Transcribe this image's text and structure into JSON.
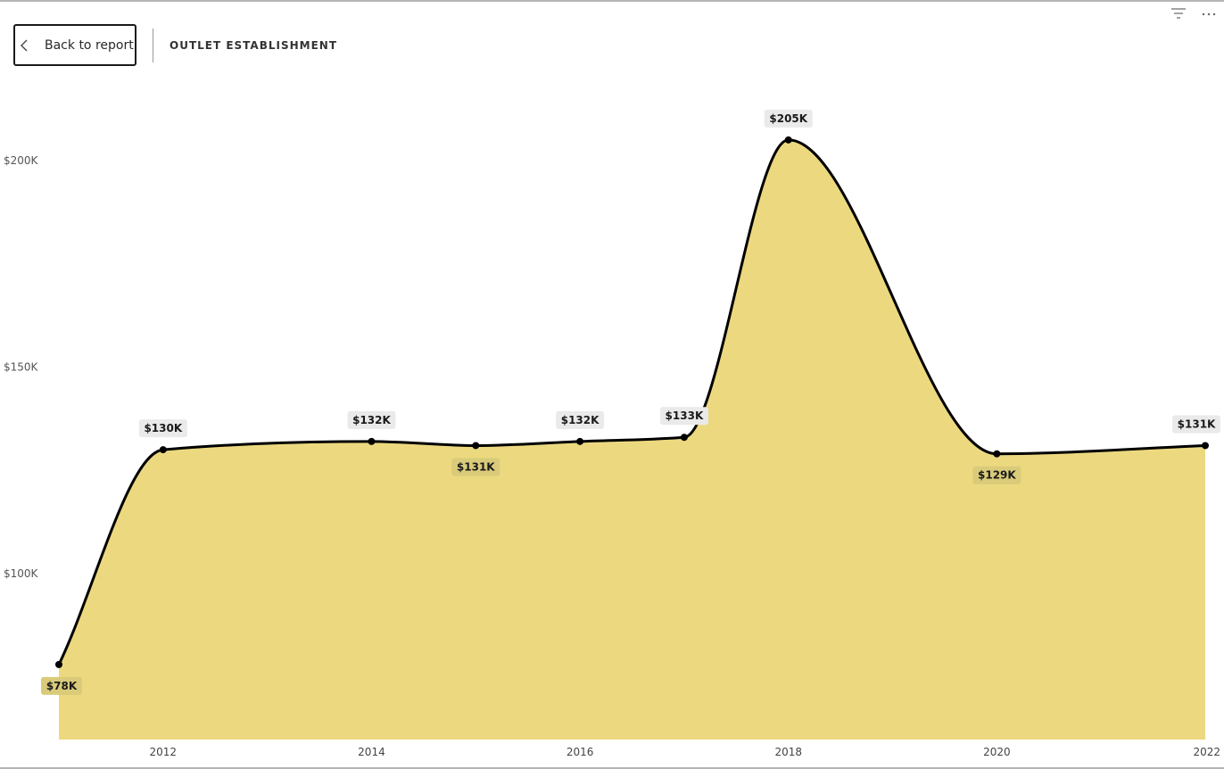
{
  "header": {
    "back_label": "Back to report",
    "title": "OUTLET ESTABLISHMENT"
  },
  "icons": {
    "back": "chevron-left-icon",
    "filter": "filter-icon",
    "more": "more-options-icon"
  },
  "colors": {
    "area_fill": "#ECD97F",
    "line": "#000000",
    "label_bg_above": "#EAEAEA",
    "label_bg_below": "#D9CB7A"
  },
  "chart_data": {
    "type": "area",
    "x": [
      2011,
      2012,
      2014,
      2015,
      2016,
      2017,
      2018,
      2020,
      2022
    ],
    "values": [
      78,
      130,
      132,
      131,
      132,
      133,
      205,
      129,
      131
    ],
    "data_labels": [
      "$78K",
      "$130K",
      "$132K",
      "$131K",
      "$132K",
      "$133K",
      "$205K",
      "$129K",
      "$131K"
    ],
    "label_position": [
      "below",
      "above",
      "above",
      "below",
      "above",
      "above",
      "above",
      "below",
      "above"
    ],
    "x_ticks": [
      "2012",
      "2014",
      "2016",
      "2018",
      "2020",
      "2022"
    ],
    "x_tick_values": [
      2012,
      2014,
      2016,
      2018,
      2020,
      2022
    ],
    "y_ticks": [
      "$100K",
      "$150K",
      "$200K"
    ],
    "y_tick_values": [
      100,
      150,
      200
    ],
    "ylim": [
      60,
      215
    ],
    "xlim": [
      2011,
      2022
    ],
    "grid": false,
    "smooth": true
  }
}
